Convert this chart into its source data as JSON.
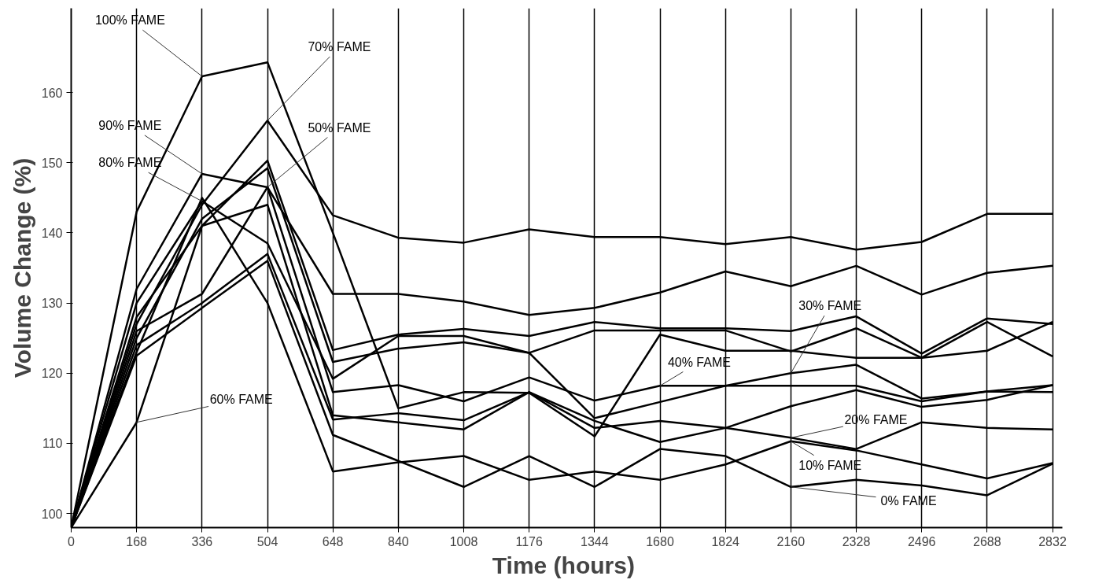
{
  "chart_data": {
    "type": "line",
    "xlabel": "Time  (hours)",
    "ylabel": "Volume Change (%)",
    "categories": [
      "0",
      "168",
      "336",
      "504",
      "648",
      "840",
      "1008",
      "1176",
      "1344",
      "1680",
      "1824",
      "2160",
      "2328",
      "2496",
      "2688",
      "2832"
    ],
    "ylim": [
      98,
      172
    ],
    "yticks": [
      100,
      110,
      120,
      130,
      140,
      150,
      160
    ],
    "grid": "x",
    "marker": "none",
    "line_style": "solid",
    "series": [
      {
        "color": "#000000",
        "values": [
          98,
          127,
          144,
          156,
          142.5,
          139.3,
          138.6,
          140.5,
          139.4,
          139.4,
          138.4,
          139.4,
          137.6,
          138.7,
          142.7,
          142.7
        ]
      },
      {
        "color": "#000000",
        "values": [
          98,
          132,
          148.4,
          146.5,
          131.3,
          131.3,
          130.2,
          128.3,
          129.3,
          131.5,
          134.5,
          132.4,
          135.3,
          131.2,
          134.3,
          135.3
        ]
      },
      {
        "color": "#000000",
        "values": [
          98,
          143,
          162.3,
          164.3,
          140,
          115,
          117.3,
          117.2,
          111,
          125.5,
          123.2,
          123.2,
          122.2,
          122.2,
          123.2,
          127.3
        ]
      },
      {
        "color": "#000000",
        "values": [
          98,
          128,
          141,
          150.3,
          123.3,
          125.5,
          126.3,
          125.3,
          127.3,
          126.4,
          126.4,
          126,
          128.1,
          122.8,
          127.8,
          127
        ]
      },
      {
        "color": "#000000",
        "values": [
          98,
          125,
          142,
          149.2,
          121.6,
          123.5,
          124.4,
          122.9,
          126.1,
          126.1,
          126.1,
          123.1,
          126.4,
          122.2,
          127.3,
          122.4
        ]
      },
      {
        "color": "#000000",
        "values": [
          98,
          130,
          144.5,
          138.5,
          119.2,
          125.3,
          125.3,
          122.9,
          113.6,
          115.9,
          118.2,
          120,
          121.2,
          116.4,
          117.4,
          117.3
        ]
      },
      {
        "color": "#000000",
        "values": [
          98,
          126,
          131.3,
          146.5,
          117.3,
          118.3,
          116,
          119.4,
          116.1,
          118.2,
          118.2,
          118.2,
          118.2,
          116,
          117.4,
          118.3
        ]
      },
      {
        "color": "#000000",
        "values": [
          98,
          124,
          130,
          137,
          113.4,
          114.3,
          113.3,
          117.3,
          113.2,
          110.2,
          112.2,
          115.3,
          117.6,
          115.2,
          116.2,
          118.3
        ]
      },
      {
        "color": "#000000",
        "values": [
          98,
          113,
          141,
          144,
          114,
          113,
          112,
          117.3,
          112.2,
          113.2,
          112.2,
          110.8,
          109.2,
          113,
          112.2,
          112
        ]
      },
      {
        "color": "#000000",
        "values": [
          98,
          122.5,
          129.3,
          136,
          111.2,
          107.5,
          103.8,
          108.2,
          103.8,
          109.2,
          108.2,
          103.8,
          104.8,
          104,
          102.6,
          107.1
        ]
      },
      {
        "color": "#000000",
        "values": [
          98,
          123,
          145,
          130,
          106,
          107.3,
          108.2,
          104.8,
          106,
          104.8,
          107,
          110.3,
          109,
          107,
          105,
          107.2
        ]
      }
    ],
    "annotations": [
      {
        "text": "100% FAME",
        "x": "336",
        "y": 162.3
      },
      {
        "text": "90% FAME",
        "x": "336",
        "y": 148.4
      },
      {
        "text": "80% FAME",
        "x": "336",
        "y": 144.5
      },
      {
        "text": "70% FAME",
        "x": "504",
        "y": 156
      },
      {
        "text": "50% FAME",
        "x": "504",
        "y": 146.5
      },
      {
        "text": "60% FAME",
        "x": "168",
        "y": 113
      },
      {
        "text": "40% FAME",
        "x": "1680",
        "y": 118.2
      },
      {
        "text": "30% FAME",
        "x": "2160",
        "y": 120
      },
      {
        "text": "20% FAME",
        "x": "2160",
        "y": 110.8
      },
      {
        "text": "10% FAME",
        "x": "2160",
        "y": 110.3
      },
      {
        "text": "0% FAME",
        "x": "2160",
        "y": 103.8
      }
    ]
  }
}
